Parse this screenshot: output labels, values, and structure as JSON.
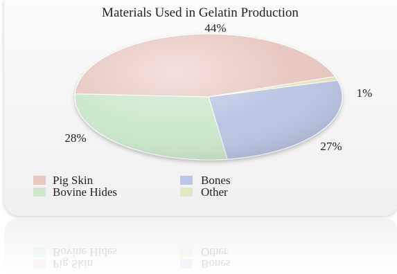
{
  "colors": {
    "pig_skin": "#e8c9c2",
    "bones": "#bcc6e4",
    "bovine_hides": "#cde8cc",
    "other": "#e4e7c4"
  },
  "chart_data": {
    "type": "pie",
    "title": "Materials Used in Gelatin Production",
    "slices": [
      {
        "label": "Pig Skin",
        "value": 44,
        "text": "44%"
      },
      {
        "label": "Bones",
        "value": 27,
        "text": "27%"
      },
      {
        "label": "Bovine Hides",
        "value": 28,
        "text": "28%"
      },
      {
        "label": "Other",
        "value": 1,
        "text": "1%"
      }
    ],
    "legend": [
      "Pig Skin",
      "Bones",
      "Bovine Hides",
      "Other"
    ],
    "legend_position": "bottom-left"
  }
}
